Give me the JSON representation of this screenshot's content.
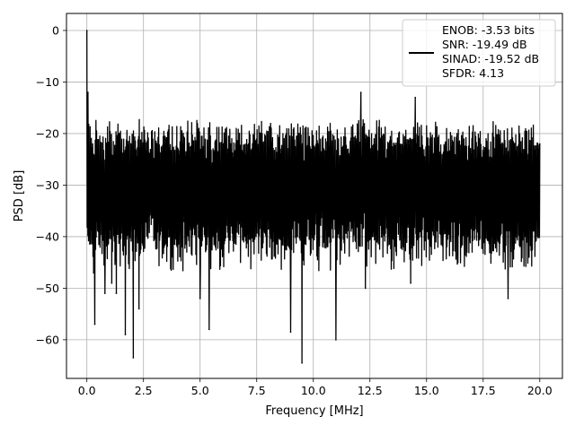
{
  "chart_data": {
    "type": "line",
    "title": "",
    "xlabel": "Frequency [MHz]",
    "ylabel": "PSD [dB]",
    "xlim": [
      -0.9,
      21.0
    ],
    "ylim": [
      -67.5,
      3.3
    ],
    "x_ticks": [
      0.0,
      2.5,
      5.0,
      7.5,
      10.0,
      12.5,
      15.0,
      17.5,
      20.0
    ],
    "x_tick_labels": [
      "0.0",
      "2.5",
      "5.0",
      "7.5",
      "10.0",
      "12.5",
      "15.0",
      "17.5",
      "20.0"
    ],
    "y_ticks": [
      0,
      -10,
      -20,
      -30,
      -40,
      -50,
      -60
    ],
    "y_tick_labels": [
      "0",
      "−10",
      "−20",
      "−30",
      "−40",
      "−50",
      "−60"
    ],
    "grid": true,
    "legend_position": "top-right",
    "series": [
      {
        "name": "ENOB: -3.53 bits\nSNR: -19.49 dB\nSINAD: -19.52 dB\nSFDR: 4.13",
        "color": "#000000",
        "x_range": [
          0.0,
          20.0
        ],
        "noise_upper_envelope_db": [
          -21,
          -17
        ],
        "noise_lower_envelope_db": [
          -47,
          -40
        ],
        "peaks": [
          {
            "x": 0.0,
            "y": 0.0
          },
          {
            "x": 0.05,
            "y": -12.0
          },
          {
            "x": 0.3,
            "y": -47.0
          },
          {
            "x": 0.35,
            "y": -57.0
          },
          {
            "x": 0.8,
            "y": -51.0
          },
          {
            "x": 1.1,
            "y": -49.0
          },
          {
            "x": 1.3,
            "y": -51.0
          },
          {
            "x": 1.7,
            "y": -59.0
          },
          {
            "x": 2.05,
            "y": -63.5
          },
          {
            "x": 2.3,
            "y": -54.0
          },
          {
            "x": 5.0,
            "y": -52.0
          },
          {
            "x": 5.4,
            "y": -58.0
          },
          {
            "x": 9.0,
            "y": -58.5
          },
          {
            "x": 9.5,
            "y": -64.5
          },
          {
            "x": 11.0,
            "y": -60.0
          },
          {
            "x": 12.1,
            "y": -12.0
          },
          {
            "x": 12.3,
            "y": -50.0
          },
          {
            "x": 14.5,
            "y": -13.0
          },
          {
            "x": 14.3,
            "y": -49.0
          },
          {
            "x": 18.6,
            "y": -52.0
          },
          {
            "x": 20.0,
            "y": -22.0
          }
        ]
      }
    ]
  }
}
